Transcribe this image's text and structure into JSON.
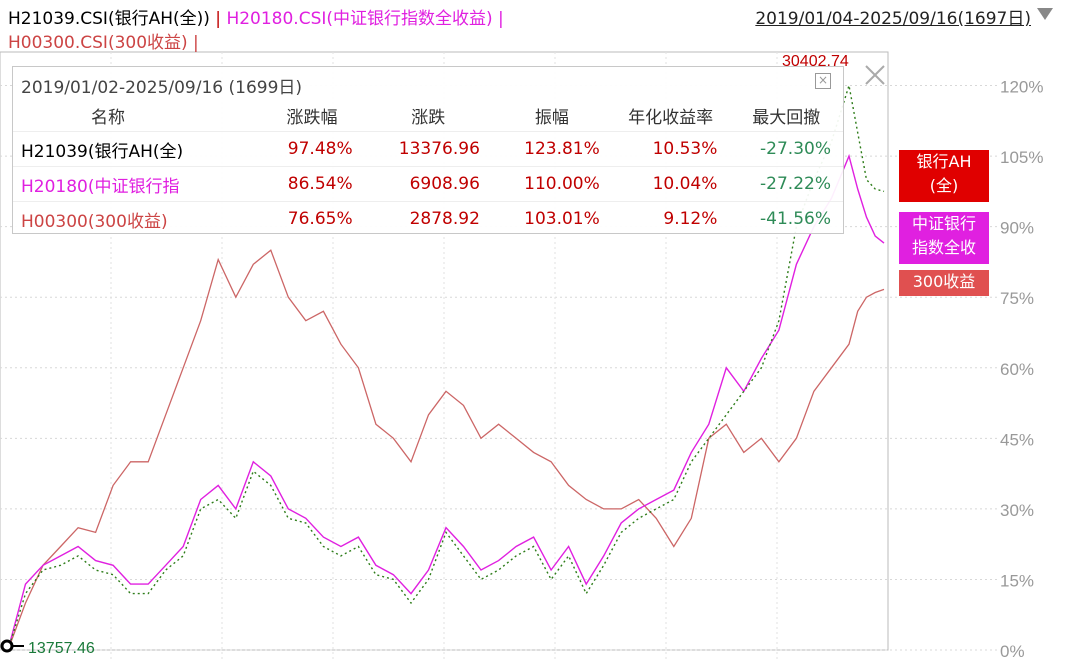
{
  "header": {
    "s1": "H21039.CSI(银行AH(全))",
    "sep1": " | ",
    "s2": "H20180.CSI(中证银行指数全收益)",
    "sep2": " |",
    "s3": "H00300.CSI(300收益)",
    "sep3": " |",
    "range": "2019/01/04-2025/09/16(1697日)"
  },
  "colors": {
    "ah": "#7a1f1f",
    "ah_dots": "#2e7d1a",
    "bank": "#e020e0",
    "hs300": "#cc6666",
    "up": "#c00000",
    "down": "#2e8b57",
    "tag_ah": "#e00000",
    "tag_bank": "#e020e0",
    "tag_300": "#e05050"
  },
  "panel": {
    "title": "2019/01/02-2025/09/16 (1699日)",
    "headers": [
      "名称",
      "涨跌幅",
      "涨跌",
      "振幅",
      "年化收益率",
      "最大回撤"
    ],
    "rows": [
      {
        "name": "H21039(银行AH(全)",
        "chg_pct": "97.48%",
        "chg": "13376.96",
        "amp": "123.81%",
        "annual": "10.53%",
        "mdd": "-27.30%"
      },
      {
        "name": "H20180(中证银行指",
        "chg_pct": "86.54%",
        "chg": "6908.96",
        "amp": "110.00%",
        "annual": "10.04%",
        "mdd": "-27.22%"
      },
      {
        "name": "H00300(300收益)",
        "chg_pct": "76.65%",
        "chg": "2878.92",
        "amp": "103.01%",
        "annual": "9.12%",
        "mdd": "-41.56%"
      }
    ]
  },
  "tags": {
    "ah": [
      "银行AH",
      "(全)"
    ],
    "bank": [
      "中证银行",
      "指数全收"
    ],
    "hs300": "300收益"
  },
  "chart_data": {
    "type": "line",
    "y_axis": {
      "ticks": [
        "120%",
        "105%",
        "90%",
        "75%",
        "60%",
        "45%",
        "30%",
        "15%",
        "0%"
      ],
      "values": [
        120,
        105,
        90,
        75,
        60,
        45,
        30,
        15,
        0
      ],
      "ylim": [
        0,
        125
      ],
      "position": "right",
      "grid": true
    },
    "x_range": [
      "2019/01/02",
      "2025/09/16"
    ],
    "annotations": {
      "high": "30402.74",
      "low": "13757.46"
    },
    "t": [
      0,
      0.02,
      0.04,
      0.06,
      0.08,
      0.1,
      0.12,
      0.14,
      0.16,
      0.18,
      0.2,
      0.22,
      0.24,
      0.26,
      0.28,
      0.3,
      0.32,
      0.34,
      0.36,
      0.38,
      0.4,
      0.42,
      0.44,
      0.46,
      0.48,
      0.5,
      0.52,
      0.54,
      0.56,
      0.58,
      0.6,
      0.62,
      0.64,
      0.66,
      0.68,
      0.7,
      0.72,
      0.74,
      0.76,
      0.78,
      0.8,
      0.82,
      0.84,
      0.86,
      0.88,
      0.9,
      0.92,
      0.94,
      0.96,
      0.97,
      0.98,
      0.99,
      1.0
    ],
    "series": [
      {
        "name": "H21039.CSI(银行AH(全))",
        "values": [
          0,
          12,
          17,
          18,
          20,
          17,
          16,
          12,
          12,
          17,
          20,
          30,
          32,
          28,
          38,
          35,
          28,
          27,
          22,
          20,
          22,
          16,
          15,
          10,
          15,
          25,
          20,
          15,
          17,
          20,
          22,
          15,
          20,
          12,
          18,
          25,
          28,
          30,
          32,
          40,
          45,
          50,
          55,
          60,
          70,
          90,
          100,
          108,
          120,
          110,
          100,
          98,
          97.5
        ]
      },
      {
        "name": "H20180.CSI(中证银行指数全收益)",
        "values": [
          0,
          14,
          18,
          20,
          22,
          19,
          18,
          14,
          14,
          18,
          22,
          32,
          35,
          30,
          40,
          37,
          30,
          28,
          24,
          22,
          24,
          18,
          16,
          12,
          17,
          26,
          22,
          17,
          19,
          22,
          24,
          17,
          22,
          14,
          20,
          27,
          30,
          32,
          34,
          42,
          48,
          60,
          55,
          62,
          68,
          82,
          90,
          96,
          105,
          98,
          92,
          88,
          86.5
        ]
      },
      {
        "name": "H00300.CSI(300收益)",
        "values": [
          0,
          10,
          18,
          22,
          26,
          25,
          35,
          40,
          40,
          50,
          60,
          70,
          83,
          75,
          82,
          85,
          75,
          70,
          72,
          65,
          60,
          48,
          45,
          40,
          50,
          55,
          52,
          45,
          48,
          45,
          42,
          40,
          35,
          32,
          30,
          30,
          32,
          28,
          22,
          28,
          45,
          48,
          42,
          45,
          40,
          45,
          55,
          60,
          65,
          72,
          75,
          76,
          76.65
        ]
      }
    ]
  }
}
